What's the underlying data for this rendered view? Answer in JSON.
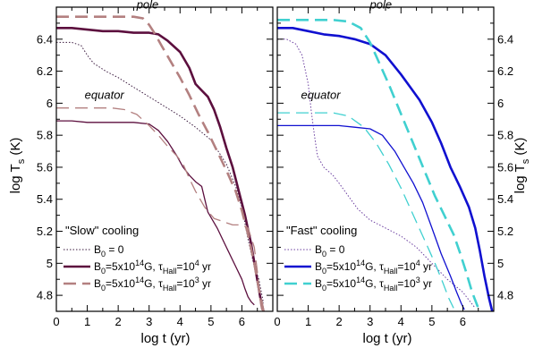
{
  "y_axis_label_main": "log T",
  "y_axis_label_sub": "s",
  "y_axis_label_unit": " (K)",
  "x_axis_label": "log t (yr)",
  "chart_data": [
    {
      "type": "line",
      "xlabel": "log t (yr)",
      "ylabel": "log T_s (K)",
      "xlim": [
        0,
        7
      ],
      "ylim": [
        4.7,
        6.6
      ],
      "x_ticks": [
        0,
        1,
        2,
        3,
        4,
        5,
        6
      ],
      "y_ticks": [
        4.8,
        5,
        5.2,
        5.4,
        5.6,
        5.8,
        6,
        6.2,
        6.4
      ],
      "annotations": {
        "pole": "pole",
        "equator": "equator"
      },
      "legend": {
        "title": "\"Slow\" cooling",
        "entries": [
          {
            "series": "b0_zero",
            "text": "B_0 = 0"
          },
          {
            "series": "pole_hall1e4",
            "text": "B_0=5x10^14G, τ_Hall=10^4 yr"
          },
          {
            "series": "pole_hall1e3",
            "text": "B_0=5x10^14G, τ_Hall=10^3 yr"
          }
        ]
      },
      "series": [
        {
          "id": "b0_zero",
          "color": "#3a1a3f",
          "style": "dotted",
          "width": 1,
          "points": [
            [
              0,
              6.38
            ],
            [
              0.5,
              6.38
            ],
            [
              0.8,
              6.36
            ],
            [
              1.0,
              6.3
            ],
            [
              1.2,
              6.25
            ],
            [
              1.6,
              6.2
            ],
            [
              2.0,
              6.16
            ],
            [
              2.5,
              6.1
            ],
            [
              3.0,
              6.04
            ],
            [
              3.5,
              5.98
            ],
            [
              4.0,
              5.92
            ],
            [
              4.5,
              5.85
            ],
            [
              5.0,
              5.77
            ],
            [
              5.5,
              5.62
            ],
            [
              5.8,
              5.48
            ],
            [
              6.0,
              5.35
            ],
            [
              6.2,
              5.15
            ],
            [
              6.4,
              4.98
            ],
            [
              6.55,
              4.9
            ],
            [
              6.7,
              4.75
            ]
          ]
        },
        {
          "id": "pole_hall1e4",
          "color": "#5c0f3e",
          "style": "solid",
          "width": 2.6,
          "points": [
            [
              0,
              6.47
            ],
            [
              0.5,
              6.47
            ],
            [
              1.0,
              6.46
            ],
            [
              1.5,
              6.45
            ],
            [
              2.0,
              6.45
            ],
            [
              2.5,
              6.44
            ],
            [
              3.0,
              6.44
            ],
            [
              3.3,
              6.43
            ],
            [
              3.6,
              6.39
            ],
            [
              4.0,
              6.32
            ],
            [
              4.3,
              6.22
            ],
            [
              4.5,
              6.12
            ],
            [
              4.7,
              6.08
            ],
            [
              4.9,
              6.04
            ],
            [
              5.1,
              5.96
            ],
            [
              5.3,
              5.85
            ],
            [
              5.5,
              5.72
            ],
            [
              5.7,
              5.6
            ],
            [
              5.9,
              5.45
            ],
            [
              6.1,
              5.3
            ],
            [
              6.3,
              5.12
            ],
            [
              6.45,
              4.95
            ],
            [
              6.6,
              4.78
            ],
            [
              6.7,
              4.7
            ]
          ]
        },
        {
          "id": "pole_hall1e3",
          "color": "#b38080",
          "style": "dashed",
          "width": 2.6,
          "points": [
            [
              0,
              6.54
            ],
            [
              1.0,
              6.54
            ],
            [
              2.0,
              6.54
            ],
            [
              2.5,
              6.54
            ],
            [
              2.8,
              6.53
            ],
            [
              3.0,
              6.49
            ],
            [
              3.2,
              6.43
            ],
            [
              3.4,
              6.36
            ],
            [
              3.7,
              6.26
            ],
            [
              4.0,
              6.16
            ],
            [
              4.3,
              6.05
            ],
            [
              4.6,
              5.93
            ],
            [
              4.9,
              5.82
            ],
            [
              5.2,
              5.7
            ],
            [
              5.5,
              5.58
            ],
            [
              5.8,
              5.45
            ],
            [
              6.0,
              5.33
            ],
            [
              6.2,
              5.18
            ],
            [
              6.4,
              5.0
            ],
            [
              6.55,
              4.84
            ],
            [
              6.7,
              4.7
            ]
          ]
        },
        {
          "id": "eq_hall1e4",
          "color": "#5c0f3e",
          "style": "solid",
          "width": 1.3,
          "points": [
            [
              0,
              5.89
            ],
            [
              0.5,
              5.89
            ],
            [
              1.0,
              5.88
            ],
            [
              2.0,
              5.88
            ],
            [
              2.5,
              5.88
            ],
            [
              3.0,
              5.87
            ],
            [
              3.3,
              5.83
            ],
            [
              3.6,
              5.76
            ],
            [
              3.9,
              5.67
            ],
            [
              4.1,
              5.6
            ],
            [
              4.3,
              5.55
            ],
            [
              4.5,
              5.51
            ],
            [
              4.7,
              5.48
            ],
            [
              4.8,
              5.4
            ],
            [
              4.9,
              5.32
            ],
            [
              5.2,
              5.22
            ],
            [
              5.5,
              5.1
            ],
            [
              5.8,
              4.98
            ],
            [
              6.0,
              4.9
            ],
            [
              6.1,
              4.84
            ],
            [
              6.2,
              4.79
            ],
            [
              6.3,
              4.76
            ],
            [
              6.4,
              4.74
            ]
          ]
        },
        {
          "id": "eq_hall1e3",
          "color": "#b38080",
          "style": "dashed",
          "width": 1.3,
          "points": [
            [
              0,
              5.97
            ],
            [
              1.0,
              5.97
            ],
            [
              1.8,
              5.97
            ],
            [
              2.2,
              5.96
            ],
            [
              2.6,
              5.93
            ],
            [
              3.0,
              5.86
            ],
            [
              3.3,
              5.8
            ],
            [
              3.6,
              5.73
            ],
            [
              3.9,
              5.67
            ],
            [
              4.1,
              5.62
            ],
            [
              4.3,
              5.53
            ],
            [
              4.5,
              5.45
            ],
            [
              4.8,
              5.35
            ],
            [
              5.1,
              5.28
            ],
            [
              5.4,
              5.26
            ],
            [
              5.7,
              5.24
            ],
            [
              6.0,
              5.24
            ],
            [
              6.2,
              5.22
            ],
            [
              6.4,
              5.1
            ],
            [
              6.5,
              4.95
            ],
            [
              6.6,
              4.75
            ],
            [
              6.65,
              4.7
            ]
          ]
        }
      ]
    },
    {
      "type": "line",
      "xlabel": "log t (yr)",
      "ylabel": "log T_s (K)",
      "xlim": [
        0,
        7
      ],
      "ylim": [
        4.7,
        6.6
      ],
      "x_ticks": [
        0,
        1,
        2,
        3,
        4,
        5,
        6
      ],
      "y_ticks": [
        4.8,
        5,
        5.2,
        5.4,
        5.6,
        5.8,
        6,
        6.2,
        6.4
      ],
      "annotations": {
        "pole": "pole",
        "equator": "equator"
      },
      "legend": {
        "title": "\"Fast\" cooling",
        "entries": [
          {
            "series": "b0_zero",
            "text": "B_0 = 0"
          },
          {
            "series": "pole_hall1e4",
            "text": "B_0=5x10^14G, τ_Hall=10^4 yr"
          },
          {
            "series": "pole_hall1e3",
            "text": "B_0=5x10^14G, τ_Hall=10^3 yr"
          }
        ]
      },
      "series": [
        {
          "id": "b0_zero",
          "color": "#6b3fa0",
          "style": "dotted",
          "width": 1,
          "points": [
            [
              0,
              6.4
            ],
            [
              0.3,
              6.4
            ],
            [
              0.6,
              6.37
            ],
            [
              0.8,
              6.3
            ],
            [
              1.0,
              6.12
            ],
            [
              1.1,
              5.95
            ],
            [
              1.2,
              5.8
            ],
            [
              1.3,
              5.67
            ],
            [
              1.5,
              5.6
            ],
            [
              1.8,
              5.55
            ],
            [
              2.0,
              5.5
            ],
            [
              2.3,
              5.42
            ],
            [
              2.6,
              5.34
            ],
            [
              3.0,
              5.27
            ],
            [
              3.5,
              5.22
            ],
            [
              4.0,
              5.17
            ],
            [
              4.5,
              5.1
            ],
            [
              5.0,
              5.0
            ],
            [
              5.5,
              4.9
            ],
            [
              6.0,
              4.82
            ],
            [
              6.2,
              4.77
            ],
            [
              6.4,
              4.72
            ]
          ]
        },
        {
          "id": "pole_hall1e4",
          "color": "#1010d0",
          "style": "solid",
          "width": 2.6,
          "points": [
            [
              0,
              6.47
            ],
            [
              0.5,
              6.47
            ],
            [
              1.0,
              6.45
            ],
            [
              1.5,
              6.43
            ],
            [
              2.0,
              6.42
            ],
            [
              2.5,
              6.4
            ],
            [
              3.0,
              6.37
            ],
            [
              3.5,
              6.3
            ],
            [
              4.0,
              6.18
            ],
            [
              4.3,
              6.1
            ],
            [
              4.6,
              6.02
            ],
            [
              5.0,
              5.88
            ],
            [
              5.3,
              5.75
            ],
            [
              5.6,
              5.6
            ],
            [
              5.9,
              5.48
            ],
            [
              6.2,
              5.35
            ],
            [
              6.4,
              5.22
            ],
            [
              6.55,
              5.08
            ],
            [
              6.7,
              4.92
            ],
            [
              6.85,
              4.78
            ],
            [
              6.95,
              4.7
            ]
          ]
        },
        {
          "id": "pole_hall1e3",
          "color": "#40d0d0",
          "style": "dashed",
          "width": 2.6,
          "points": [
            [
              0,
              6.52
            ],
            [
              1.0,
              6.52
            ],
            [
              1.8,
              6.52
            ],
            [
              2.3,
              6.51
            ],
            [
              2.7,
              6.47
            ],
            [
              3.0,
              6.38
            ],
            [
              3.3,
              6.25
            ],
            [
              3.6,
              6.12
            ],
            [
              3.9,
              5.98
            ],
            [
              4.2,
              5.84
            ],
            [
              4.5,
              5.7
            ],
            [
              4.8,
              5.56
            ],
            [
              5.1,
              5.42
            ],
            [
              5.4,
              5.3
            ],
            [
              5.7,
              5.18
            ],
            [
              5.9,
              5.07
            ],
            [
              6.1,
              4.95
            ],
            [
              6.3,
              4.82
            ],
            [
              6.5,
              4.72
            ],
            [
              6.6,
              4.7
            ]
          ]
        },
        {
          "id": "eq_hall1e4",
          "color": "#1010d0",
          "style": "solid",
          "width": 1.3,
          "points": [
            [
              0,
              5.86
            ],
            [
              0.5,
              5.86
            ],
            [
              1.0,
              5.86
            ],
            [
              2.0,
              5.86
            ],
            [
              2.5,
              5.85
            ],
            [
              3.0,
              5.84
            ],
            [
              3.4,
              5.8
            ],
            [
              3.8,
              5.7
            ],
            [
              4.1,
              5.6
            ],
            [
              4.4,
              5.5
            ],
            [
              4.7,
              5.38
            ],
            [
              5.0,
              5.22
            ],
            [
              5.3,
              5.06
            ],
            [
              5.6,
              4.92
            ],
            [
              5.8,
              4.82
            ],
            [
              5.95,
              4.75
            ],
            [
              6.05,
              4.71
            ]
          ]
        },
        {
          "id": "eq_hall1e3",
          "color": "#40d0d0",
          "style": "dashed",
          "width": 1.3,
          "points": [
            [
              0,
              5.94
            ],
            [
              1.0,
              5.94
            ],
            [
              1.8,
              5.94
            ],
            [
              2.3,
              5.92
            ],
            [
              2.8,
              5.85
            ],
            [
              3.2,
              5.75
            ],
            [
              3.6,
              5.62
            ],
            [
              4.0,
              5.47
            ],
            [
              4.4,
              5.3
            ],
            [
              4.8,
              5.13
            ],
            [
              5.1,
              5.0
            ],
            [
              5.35,
              4.88
            ],
            [
              5.55,
              4.78
            ],
            [
              5.7,
              4.72
            ]
          ]
        }
      ]
    }
  ]
}
